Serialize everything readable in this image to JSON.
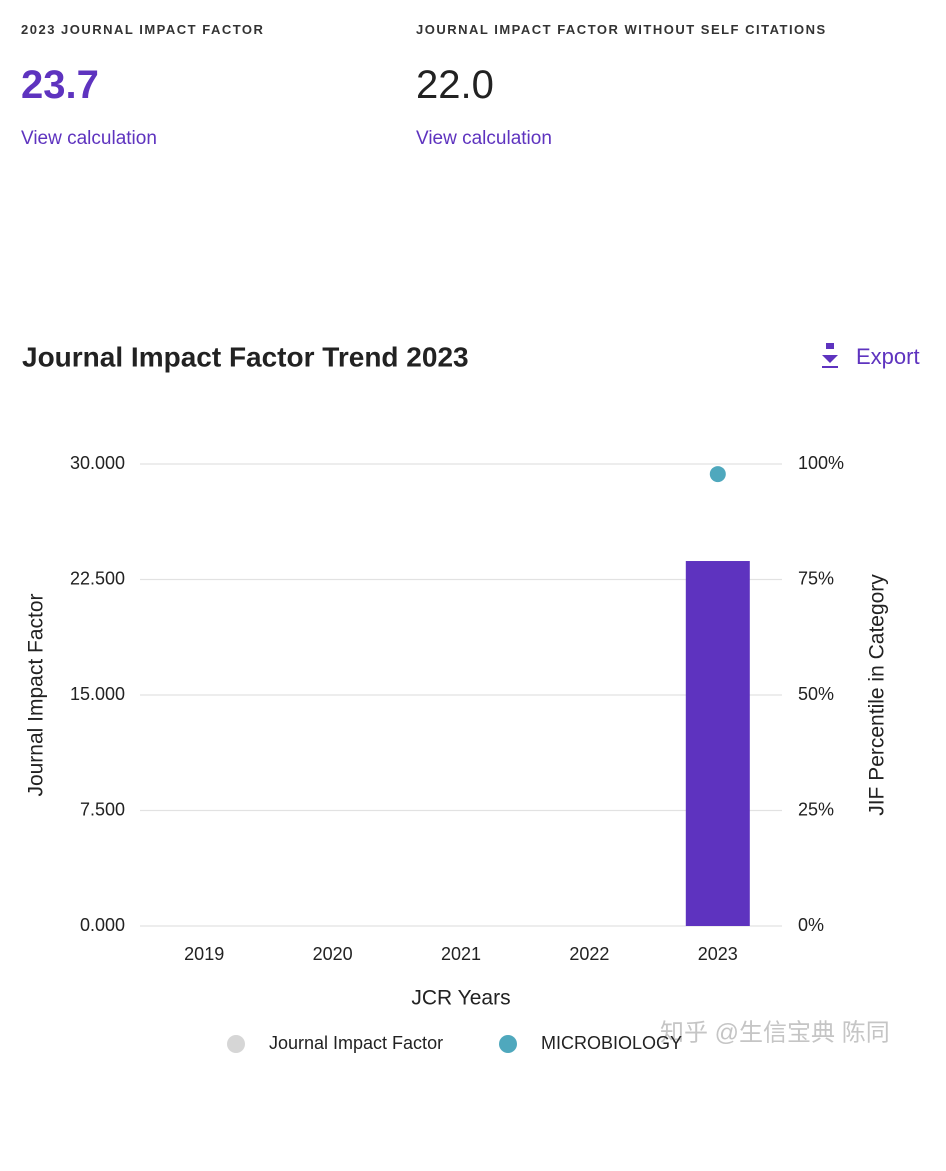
{
  "metrics": [
    {
      "label": "2023 JOURNAL IMPACT FACTOR",
      "value": "23.7",
      "link": "View calculation"
    },
    {
      "label": "JOURNAL IMPACT FACTOR WITHOUT SELF CITATIONS",
      "value": "22.0",
      "link": "View calculation"
    }
  ],
  "export": "Export",
  "watermark": "知乎 @生信宝典 陈同",
  "chart_data": {
    "type": "bar",
    "title": "Journal Impact Factor Trend 2023",
    "x_label": "JCR Years",
    "y_label": "Journal Impact Factor",
    "y2_label": "JIF Percentile in Category",
    "categories": [
      "2019",
      "2020",
      "2021",
      "2022",
      "2023"
    ],
    "ylim": [
      0,
      30
    ],
    "yticks": [
      {
        "value": 0,
        "label": "0.000"
      },
      {
        "value": 7.5,
        "label": "7.500"
      },
      {
        "value": 15,
        "label": "15.000"
      },
      {
        "value": 22.5,
        "label": "22.500"
      },
      {
        "value": 30,
        "label": "30.000"
      }
    ],
    "y2lim": [
      0,
      100
    ],
    "y2ticks": [
      {
        "value": 0,
        "label": "0%"
      },
      {
        "value": 25,
        "label": "25%"
      },
      {
        "value": 50,
        "label": "50%"
      },
      {
        "value": 75,
        "label": "75%"
      },
      {
        "value": 100,
        "label": "100%"
      }
    ],
    "grid": true,
    "series": [
      {
        "name": "Journal Impact Factor",
        "type": "bar",
        "color": "#5e33bf",
        "legend_color": "#d6d6d6",
        "values": [
          null,
          null,
          null,
          null,
          23.7
        ]
      },
      {
        "name": "MICROBIOLOGY",
        "type": "scatter",
        "axis": "y2",
        "color": "#4fa8bd",
        "values": [
          null,
          null,
          null,
          null,
          98.9
        ]
      }
    ]
  }
}
